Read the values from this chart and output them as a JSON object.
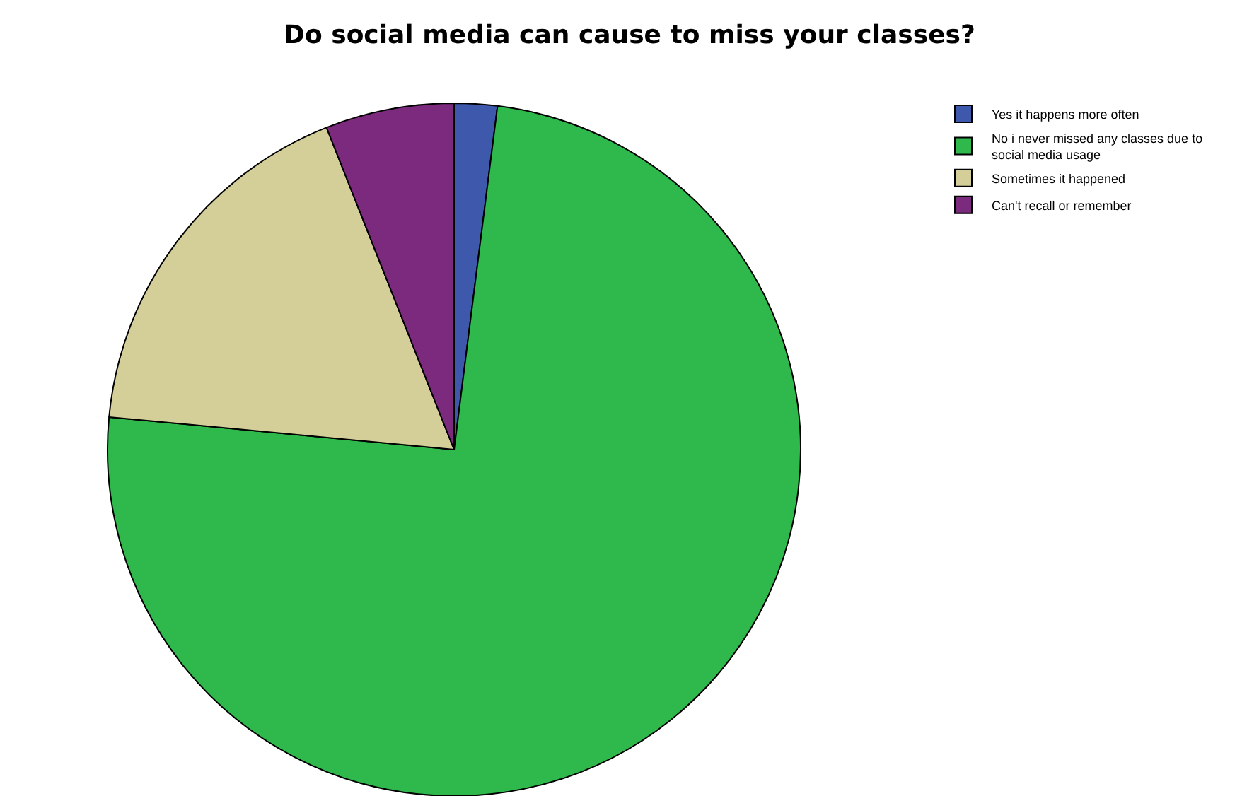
{
  "chart_data": {
    "type": "pie",
    "title": "Do social media can cause to miss your classes?",
    "categories": [
      "Yes it happens more often",
      "No i never missed any classes due to social media usage",
      "Sometimes it happened",
      "Can't recall or remember"
    ],
    "values": [
      2,
      74.5,
      17.5,
      6
    ],
    "colors": [
      "#3e58ac",
      "#2fb84b",
      "#d4cf98",
      "#7b2a7d"
    ],
    "legend": "top right"
  }
}
